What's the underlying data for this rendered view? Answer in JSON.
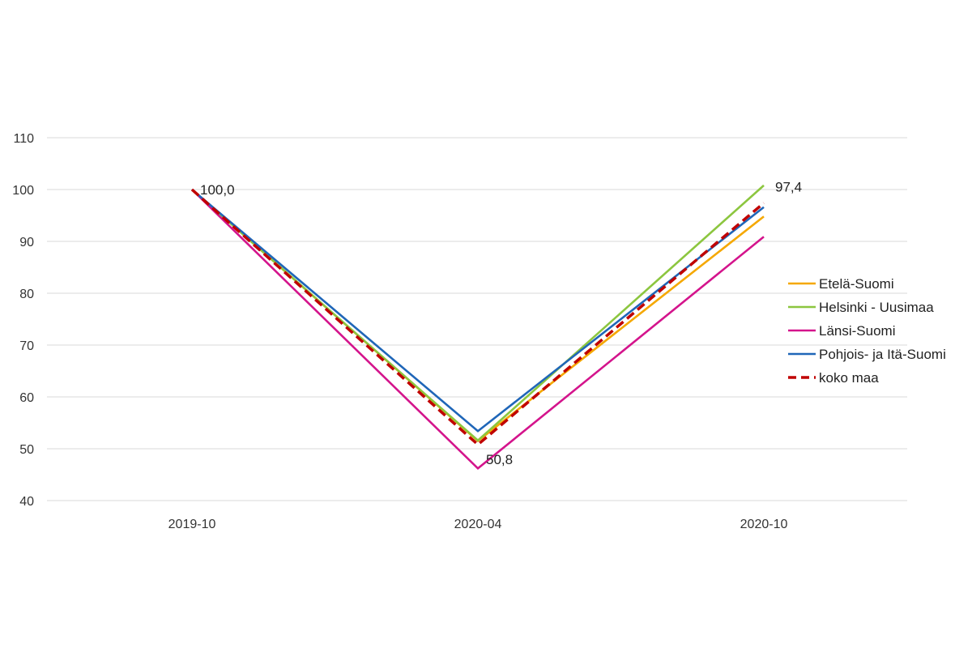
{
  "chart_data": {
    "type": "line",
    "title": "",
    "xlabel": "",
    "ylabel": "",
    "categories": [
      "2019-10",
      "2020-04",
      "2020-10"
    ],
    "ylim": [
      40,
      110
    ],
    "yticks": [
      40,
      50,
      60,
      70,
      80,
      90,
      100,
      110
    ],
    "grid": true,
    "legend_position": "right",
    "series": [
      {
        "name": "Etelä-Suomi",
        "values": [
          100,
          51.5,
          94.8
        ],
        "color": "#f5a800",
        "dashed": false
      },
      {
        "name": "Helsinki - Uusimaa",
        "values": [
          100,
          51.6,
          100.8
        ],
        "color": "#8cc63f",
        "dashed": false
      },
      {
        "name": "Länsi-Suomi",
        "values": [
          100,
          46.2,
          90.9
        ],
        "color": "#d4148c",
        "dashed": false
      },
      {
        "name": "Pohjois- ja Itä-Suomi",
        "values": [
          100,
          53.4,
          96.6
        ],
        "color": "#1f66b8",
        "dashed": false
      },
      {
        "name": "koko maa",
        "values": [
          100,
          50.8,
          97.4
        ],
        "color": "#c00000",
        "dashed": true
      }
    ],
    "data_labels": [
      {
        "series": "koko maa",
        "index": 0,
        "text": "100,0"
      },
      {
        "series": "koko maa",
        "index": 1,
        "text": "50,8"
      },
      {
        "series": "koko maa",
        "index": 2,
        "text": "97,4"
      }
    ]
  }
}
